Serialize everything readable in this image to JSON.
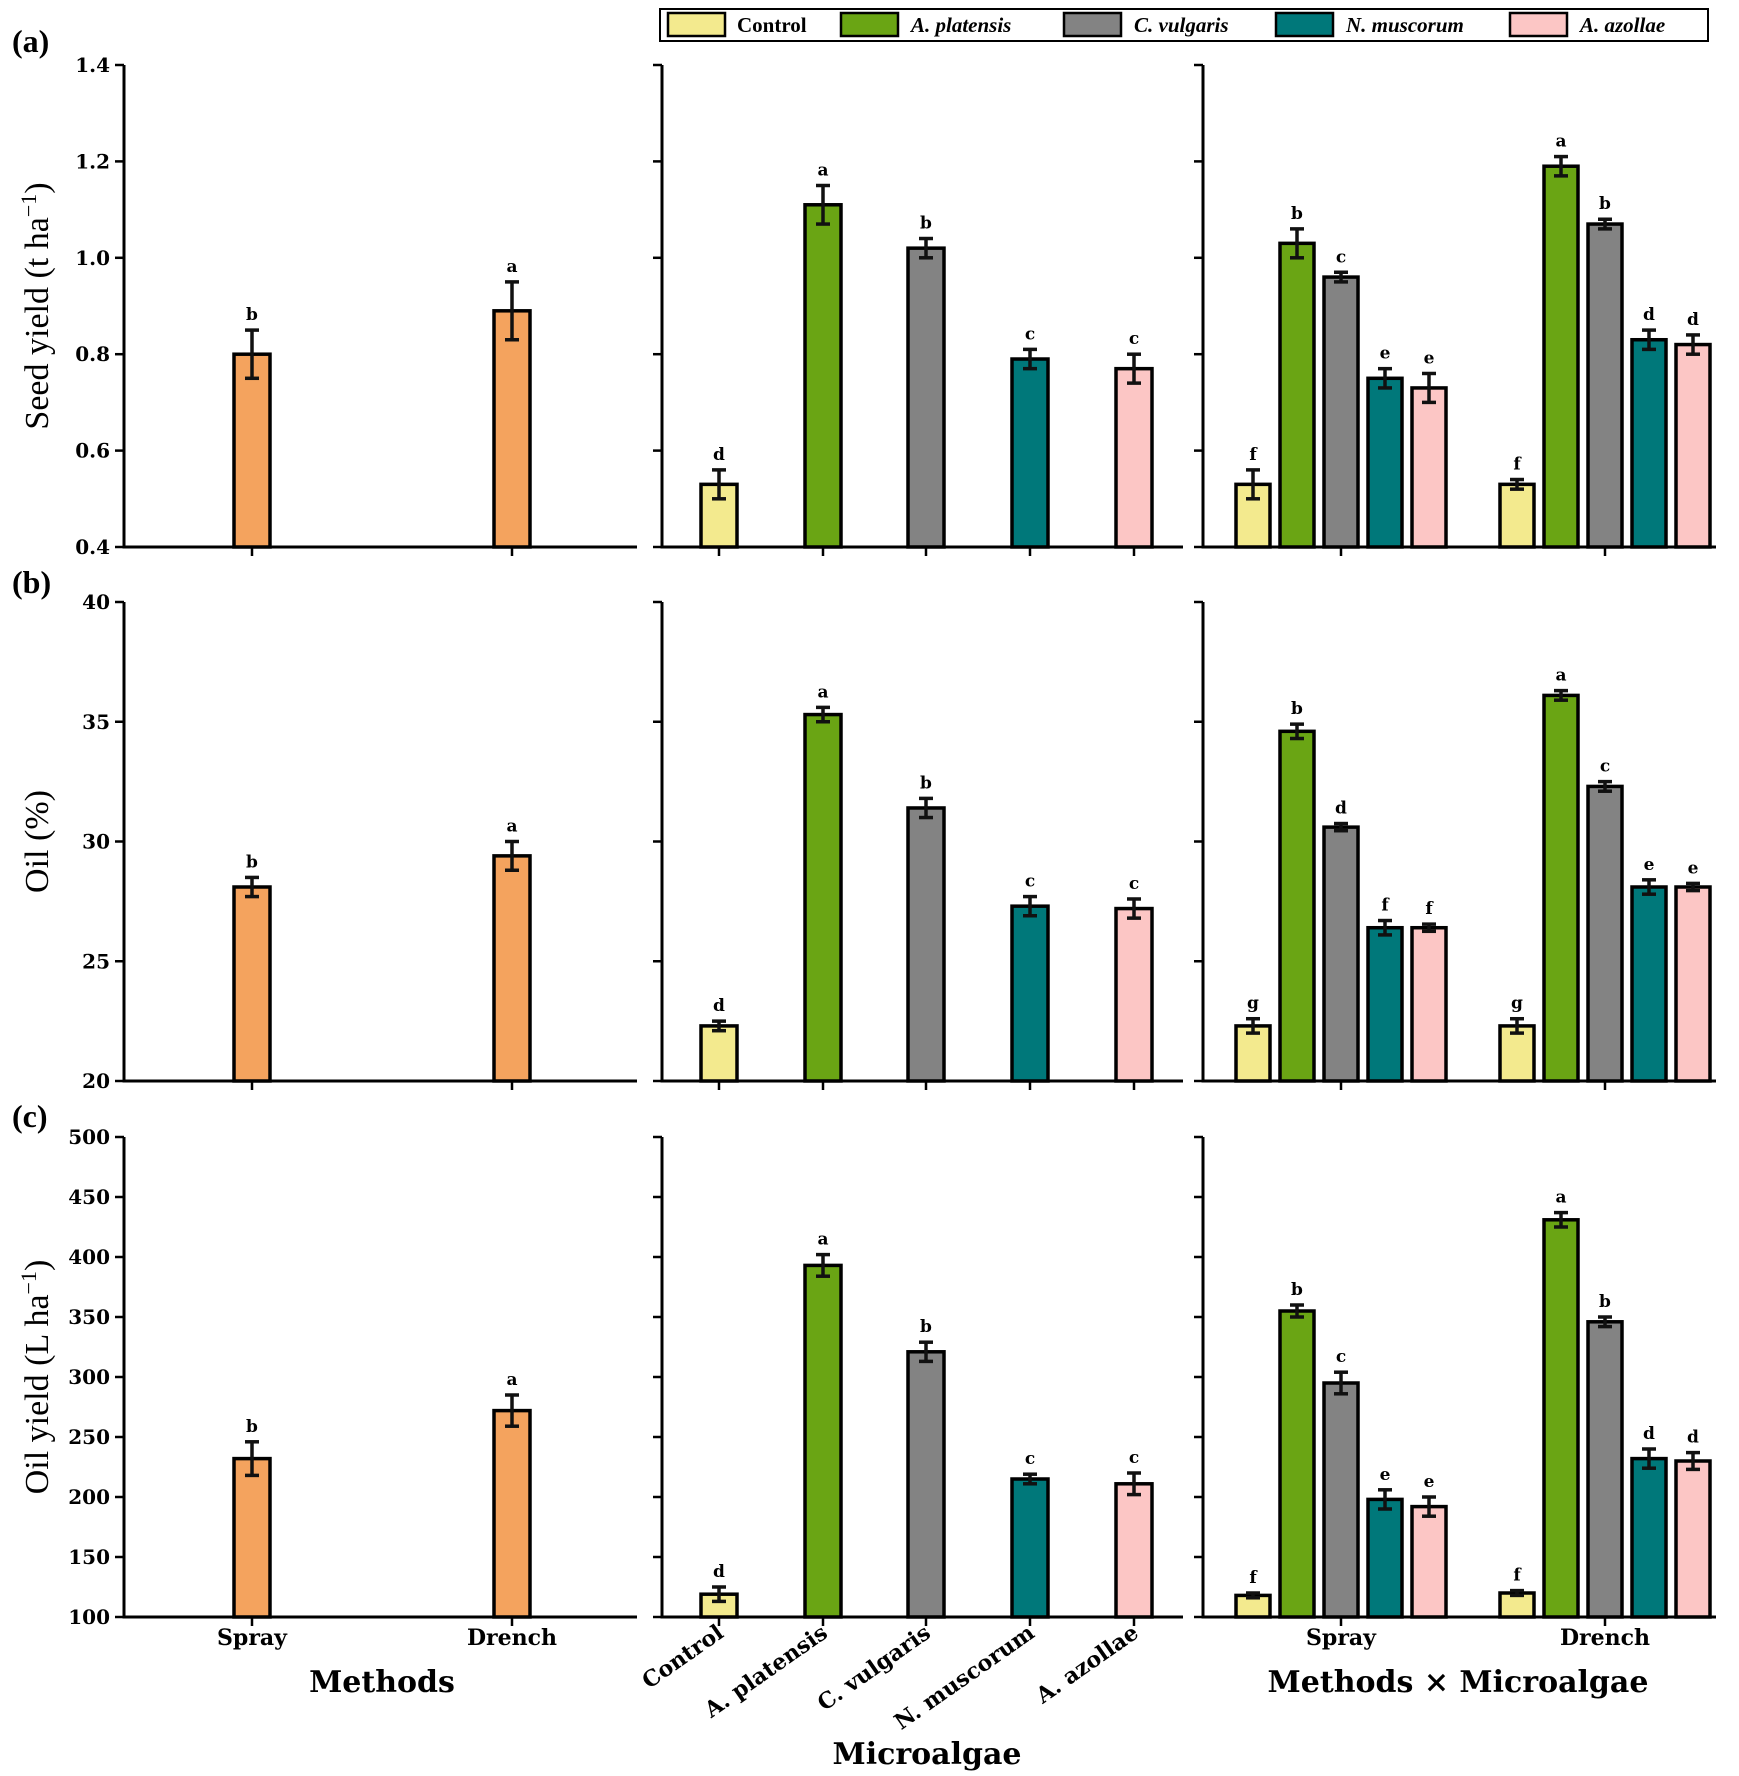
{
  "colors": {
    "Control": "#f3ea8e",
    "A. platensis": "#6aa514",
    "C. vulgaris": "#838383",
    "N. muscorum": "#00787a",
    "A. azollae": "#fcc6c5",
    "method": "#f4a35e"
  },
  "legend": [
    {
      "label": "Control",
      "italic": false
    },
    {
      "label": "A. platensis",
      "italic": true
    },
    {
      "label": "C. vulgaris",
      "italic": true
    },
    {
      "label": "N. muscorum",
      "italic": true
    },
    {
      "label": "A. azollae",
      "italic": true
    }
  ],
  "labels": {
    "methods_xlabel": "Methods",
    "microalgae_xlabel": "Microalgae",
    "interaction_xlabel": "Methods × Microalgae"
  },
  "chart_data": [
    {
      "type": "bar",
      "panel": "(a)",
      "ylabel": "Seed yield (t ha",
      "ylabel_sup": "−1",
      "ylabel_suffix": ")",
      "ylim": [
        0.4,
        1.4
      ],
      "yticks": [
        "0.4",
        "0.6",
        "0.8",
        "1.0",
        "1.2",
        "1.4"
      ],
      "methods": {
        "categories": [
          "Spray",
          "Drench"
        ],
        "values": [
          0.8,
          0.89
        ],
        "errors": [
          0.05,
          0.06
        ],
        "letters": [
          "b",
          "a"
        ]
      },
      "microalgae": {
        "categories": [
          "Control",
          "A. platensis",
          "C. vulgaris",
          "N. muscorum",
          "A. azollae"
        ],
        "values": [
          0.53,
          1.11,
          1.02,
          0.79,
          0.77
        ],
        "errors": [
          0.03,
          0.04,
          0.02,
          0.02,
          0.03
        ],
        "letters": [
          "d",
          "a",
          "b",
          "c",
          "c"
        ]
      },
      "interaction": {
        "groups": [
          "Spray",
          "Drench"
        ],
        "series": [
          {
            "name": "Control",
            "values": [
              0.53,
              0.53
            ],
            "errors": [
              0.03,
              0.01
            ],
            "letters": [
              "f",
              "f"
            ]
          },
          {
            "name": "A. platensis",
            "values": [
              1.03,
              1.19
            ],
            "errors": [
              0.03,
              0.02
            ],
            "letters": [
              "b",
              "a"
            ]
          },
          {
            "name": "C. vulgaris",
            "values": [
              0.96,
              1.07
            ],
            "errors": [
              0.01,
              0.01
            ],
            "letters": [
              "c",
              "b"
            ]
          },
          {
            "name": "N. muscorum",
            "values": [
              0.75,
              0.83
            ],
            "errors": [
              0.02,
              0.02
            ],
            "letters": [
              "e",
              "d"
            ]
          },
          {
            "name": "A. azollae",
            "values": [
              0.73,
              0.82
            ],
            "errors": [
              0.03,
              0.02
            ],
            "letters": [
              "e",
              "d"
            ]
          }
        ]
      }
    },
    {
      "type": "bar",
      "panel": "(b)",
      "ylabel": "Oil (%)",
      "ylabel_sup": "",
      "ylabel_suffix": "",
      "ylim": [
        20,
        40
      ],
      "yticks": [
        "20",
        "25",
        "30",
        "35",
        "40"
      ],
      "methods": {
        "categories": [
          "Spray",
          "Drench"
        ],
        "values": [
          28.1,
          29.4
        ],
        "errors": [
          0.4,
          0.6
        ],
        "letters": [
          "b",
          "a"
        ]
      },
      "microalgae": {
        "categories": [
          "Control",
          "A. platensis",
          "C. vulgaris",
          "N. muscorum",
          "A. azollae"
        ],
        "values": [
          22.3,
          35.3,
          31.4,
          27.3,
          27.2
        ],
        "errors": [
          0.2,
          0.3,
          0.4,
          0.4,
          0.4
        ],
        "letters": [
          "d",
          "a",
          "b",
          "c",
          "c"
        ]
      },
      "interaction": {
        "groups": [
          "Spray",
          "Drench"
        ],
        "series": [
          {
            "name": "Control",
            "values": [
              22.3,
              22.3
            ],
            "errors": [
              0.3,
              0.3
            ],
            "letters": [
              "g",
              "g"
            ]
          },
          {
            "name": "A. platensis",
            "values": [
              34.6,
              36.1
            ],
            "errors": [
              0.3,
              0.2
            ],
            "letters": [
              "b",
              "a"
            ]
          },
          {
            "name": "C. vulgaris",
            "values": [
              30.6,
              32.3
            ],
            "errors": [
              0.15,
              0.2
            ],
            "letters": [
              "d",
              "c"
            ]
          },
          {
            "name": "N. muscorum",
            "values": [
              26.4,
              28.1
            ],
            "errors": [
              0.3,
              0.3
            ],
            "letters": [
              "f",
              "e"
            ]
          },
          {
            "name": "A. azollae",
            "values": [
              26.4,
              28.1
            ],
            "errors": [
              0.15,
              0.15
            ],
            "letters": [
              "f",
              "e"
            ]
          }
        ]
      }
    },
    {
      "type": "bar",
      "panel": "(c)",
      "ylabel": "Oil yield (L ha",
      "ylabel_sup": "−1",
      "ylabel_suffix": ")",
      "ylim": [
        100,
        500
      ],
      "yticks": [
        "100",
        "150",
        "200",
        "250",
        "300",
        "350",
        "400",
        "450",
        "500"
      ],
      "methods": {
        "categories": [
          "Spray",
          "Drench"
        ],
        "values": [
          232,
          272
        ],
        "errors": [
          14,
          13
        ],
        "letters": [
          "b",
          "a"
        ]
      },
      "microalgae": {
        "categories": [
          "Control",
          "A. platensis",
          "C. vulgaris",
          "N. muscorum",
          "A. azollae"
        ],
        "values": [
          119,
          393,
          321,
          215,
          211
        ],
        "errors": [
          6,
          9,
          8,
          4,
          9
        ],
        "letters": [
          "d",
          "a",
          "b",
          "c",
          "c"
        ]
      },
      "interaction": {
        "groups": [
          "Spray",
          "Drench"
        ],
        "series": [
          {
            "name": "Control",
            "values": [
              118,
              120
            ],
            "errors": [
              2,
              2
            ],
            "letters": [
              "f",
              "f"
            ]
          },
          {
            "name": "A. platensis",
            "values": [
              355,
              431
            ],
            "errors": [
              5,
              6
            ],
            "letters": [
              "b",
              "a"
            ]
          },
          {
            "name": "C. vulgaris",
            "values": [
              295,
              346
            ],
            "errors": [
              9,
              4
            ],
            "letters": [
              "c",
              "b"
            ]
          },
          {
            "name": "N. muscorum",
            "values": [
              198,
              232
            ],
            "errors": [
              8,
              8
            ],
            "letters": [
              "e",
              "d"
            ]
          },
          {
            "name": "A. azollae",
            "values": [
              192,
              230
            ],
            "errors": [
              8,
              7
            ],
            "letters": [
              "e",
              "d"
            ]
          }
        ]
      }
    }
  ]
}
